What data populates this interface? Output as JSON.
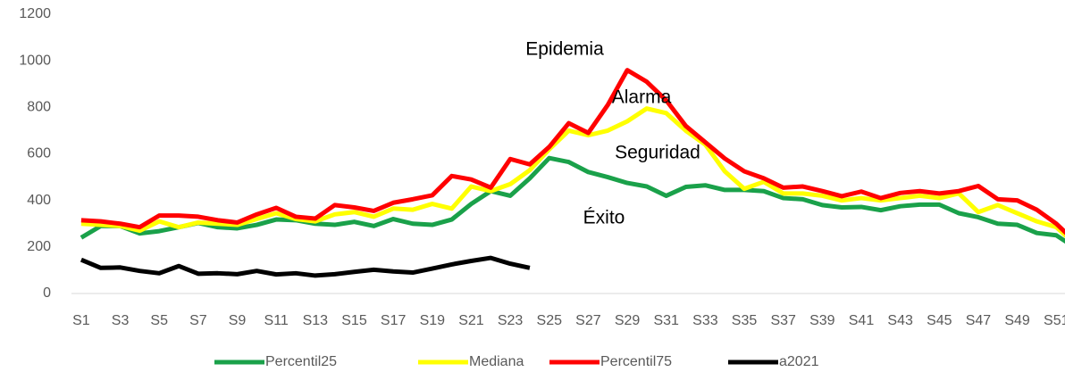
{
  "chart_data": {
    "type": "line",
    "annotations": [
      "Epidemia",
      "Alarma",
      "Seguridad",
      "Éxito"
    ],
    "categories": [
      "S1",
      null,
      "S3",
      null,
      "S5",
      null,
      "S7",
      null,
      "S9",
      null,
      "S11",
      null,
      "S13",
      null,
      "S15",
      null,
      "S17",
      null,
      "S19",
      null,
      "S21",
      null,
      "S23",
      null,
      "S25",
      null,
      "S27",
      null,
      "S29",
      null,
      "S31",
      null,
      "S33",
      null,
      "S35",
      null,
      "S37",
      null,
      "S39",
      null,
      "S41",
      null,
      "S43",
      null,
      "S45",
      null,
      "S47",
      null,
      "S49",
      null,
      "S51",
      null
    ],
    "series": [
      {
        "name": "Percentil25",
        "color": "#1aa14a",
        "values": [
          240,
          290,
          290,
          258,
          268,
          285,
          303,
          285,
          280,
          295,
          318,
          315,
          300,
          295,
          308,
          290,
          320,
          300,
          295,
          318,
          385,
          440,
          420,
          495,
          582,
          565,
          522,
          500,
          475,
          460,
          420,
          458,
          465,
          445,
          445,
          440,
          410,
          405,
          380,
          370,
          372,
          358,
          375,
          382,
          382,
          345,
          328,
          300,
          295,
          260,
          250,
          195
        ]
      },
      {
        "name": "Mediana",
        "color": "#ffff00",
        "values": [
          300,
          295,
          290,
          270,
          310,
          285,
          305,
          300,
          295,
          320,
          345,
          320,
          310,
          340,
          350,
          330,
          365,
          360,
          385,
          365,
          460,
          440,
          470,
          530,
          620,
          700,
          680,
          700,
          740,
          795,
          775,
          700,
          640,
          525,
          450,
          480,
          430,
          430,
          420,
          400,
          410,
          400,
          410,
          420,
          410,
          430,
          350,
          380,
          345,
          310,
          285,
          210
        ]
      },
      {
        "name": "Percentil75",
        "color": "#ff0000",
        "values": [
          315,
          310,
          300,
          285,
          335,
          335,
          330,
          315,
          305,
          340,
          368,
          330,
          322,
          380,
          370,
          355,
          390,
          405,
          422,
          505,
          490,
          455,
          578,
          555,
          630,
          732,
          690,
          810,
          960,
          910,
          830,
          720,
          650,
          580,
          525,
          495,
          455,
          460,
          440,
          418,
          438,
          410,
          432,
          440,
          430,
          440,
          462,
          405,
          400,
          360,
          300,
          220
        ]
      },
      {
        "name": "a2021",
        "color": "#000000",
        "values": [
          145,
          110,
          112,
          97,
          87,
          118,
          85,
          87,
          83,
          97,
          82,
          87,
          77,
          83,
          93,
          102,
          95,
          90,
          107,
          125,
          140,
          153,
          128,
          110,
          null,
          null,
          null,
          null,
          null,
          null,
          null,
          null,
          null,
          null,
          null,
          null,
          null,
          null,
          null,
          null,
          null,
          null,
          null,
          null,
          null,
          null,
          null,
          null,
          null,
          null,
          null,
          null
        ]
      }
    ],
    "ylim": [
      0,
      1200
    ],
    "yticks": [
      0,
      200,
      400,
      600,
      800,
      1000,
      1200
    ],
    "grid": false,
    "legend": "bottom"
  }
}
